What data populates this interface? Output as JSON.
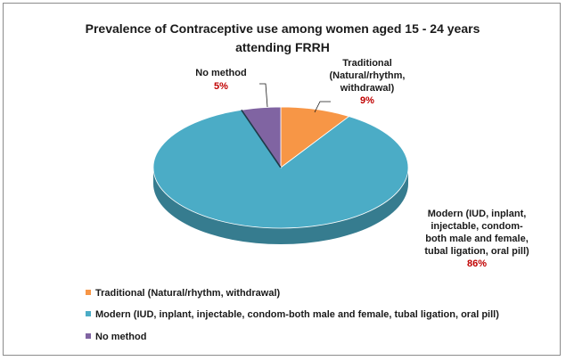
{
  "chart_data": {
    "type": "pie",
    "title_lines": [
      "Prevalence of Contraceptive use among women aged 15 - 24 years",
      "attending FRRH"
    ],
    "slices": [
      {
        "label_lines": [
          "Traditional",
          "(Natural/rhythm,",
          "withdrawal)"
        ],
        "legend": "Traditional  (Natural/rhythm, withdrawal)",
        "value": 9,
        "pct_label": "9%",
        "color": "#f79646"
      },
      {
        "label_lines": [
          "Modern (IUD, inplant,",
          "injectable, condom-",
          "both male and female,",
          "tubal ligation, oral pill)"
        ],
        "legend": "Modern  (IUD, inplant, injectable, condom-both  male and female, tubal ligation, oral pill)",
        "value": 86,
        "pct_label": "86%",
        "color": "#4bacc6"
      },
      {
        "label_lines": [
          "No method"
        ],
        "legend": "No method",
        "value": 5,
        "pct_label": "5%",
        "color": "#8064a2"
      }
    ],
    "label_text_color": "#1a1a1a",
    "pct_text_color": "#c00000",
    "legend_position": "bottom-left",
    "style": "3d-pie"
  }
}
